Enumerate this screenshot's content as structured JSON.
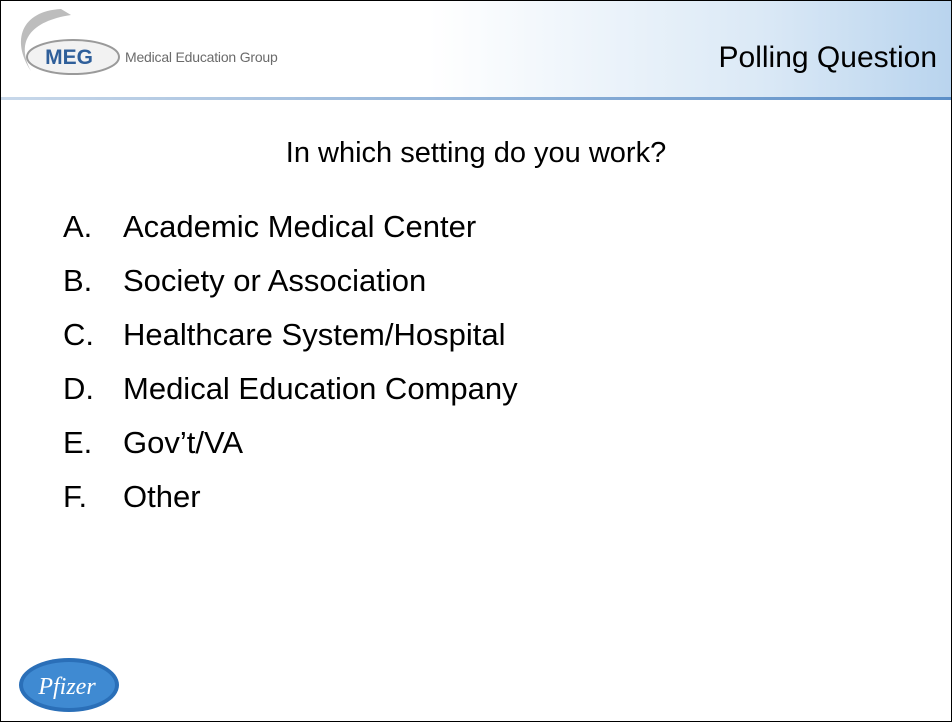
{
  "header": {
    "logo_abbr": "MEG",
    "logo_text": "Medical Education Group",
    "title": "Polling Question"
  },
  "question": "In which setting do you work?",
  "options": [
    {
      "letter": "A.",
      "text": "Academic Medical Center"
    },
    {
      "letter": "B.",
      "text": "Society or Association"
    },
    {
      "letter": "C.",
      "text": "Healthcare System/Hospital"
    },
    {
      "letter": "D.",
      "text": "Medical Education Company"
    },
    {
      "letter": "E.",
      "text": "Gov’t/VA"
    },
    {
      "letter": "F.",
      "text": "Other"
    }
  ],
  "footer": {
    "logo": "Pfizer"
  }
}
